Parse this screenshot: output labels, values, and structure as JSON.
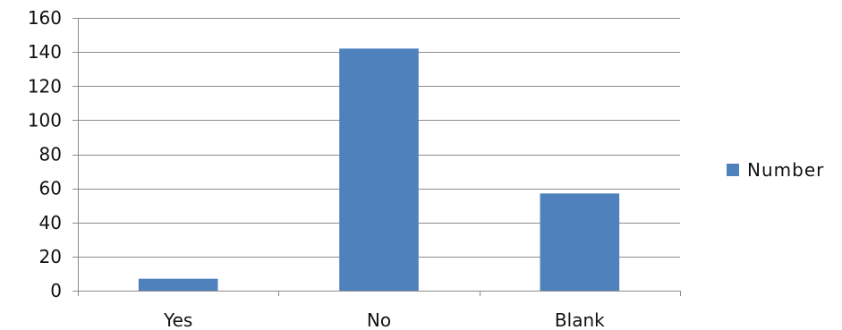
{
  "chart_data": {
    "type": "bar",
    "categories": [
      "Yes",
      "No",
      "Blank"
    ],
    "series": [
      {
        "name": "Number",
        "values": [
          7,
          142,
          57
        ],
        "color": "#4f81bd"
      }
    ],
    "ylim": [
      0,
      160
    ],
    "yticks": [
      0,
      20,
      40,
      60,
      80,
      100,
      120,
      140,
      160
    ],
    "grid": true,
    "legend": "right"
  }
}
